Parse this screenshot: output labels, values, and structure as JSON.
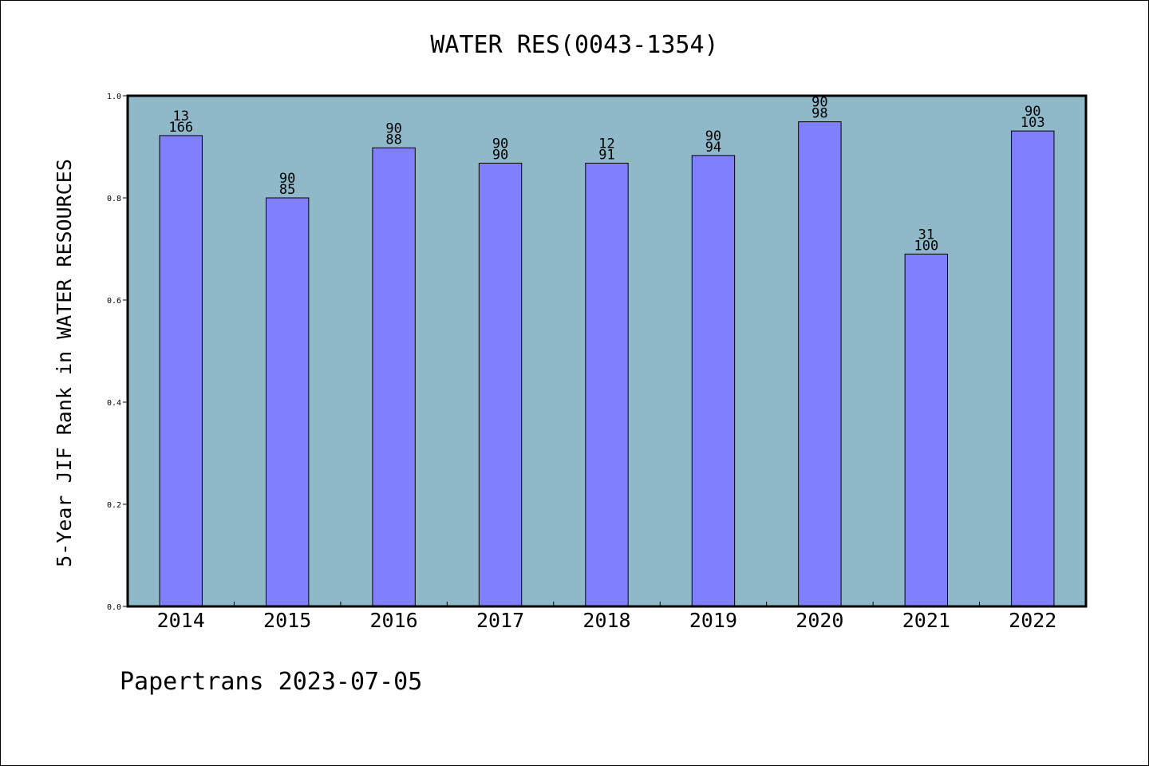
{
  "chart_data": {
    "type": "bar",
    "title": "WATER RES(0043-1354)",
    "xlabel": "",
    "ylabel": "5-Year JIF Rank in WATER RESOURCES",
    "ylim": [
      0.0,
      1.0
    ],
    "yticks": [
      "0.0",
      "0.2",
      "0.4",
      "0.6",
      "0.8",
      "1.0"
    ],
    "categories": [
      "2014",
      "2015",
      "2016",
      "2017",
      "2018",
      "2019",
      "2020",
      "2021",
      "2022"
    ],
    "values": [
      0.922,
      0.8,
      0.898,
      0.868,
      0.868,
      0.883,
      0.949,
      0.69,
      0.931
    ],
    "annotations": [
      {
        "top": "13",
        "bottom": "166"
      },
      {
        "top": "90",
        "bottom": "85"
      },
      {
        "top": "90",
        "bottom": "88"
      },
      {
        "top": "90",
        "bottom": "90"
      },
      {
        "top": "12",
        "bottom": "91"
      },
      {
        "top": "90",
        "bottom": "94"
      },
      {
        "top": "90",
        "bottom": "98"
      },
      {
        "top": "31",
        "bottom": "100"
      },
      {
        "top": "90",
        "bottom": "103"
      }
    ],
    "grid": false,
    "colors": {
      "plot_background": "#8fb8c8",
      "bar_fill": "#8080ff",
      "bar_stroke": "#000000"
    }
  },
  "footer": {
    "text": "Papertrans 2023-07-05"
  }
}
